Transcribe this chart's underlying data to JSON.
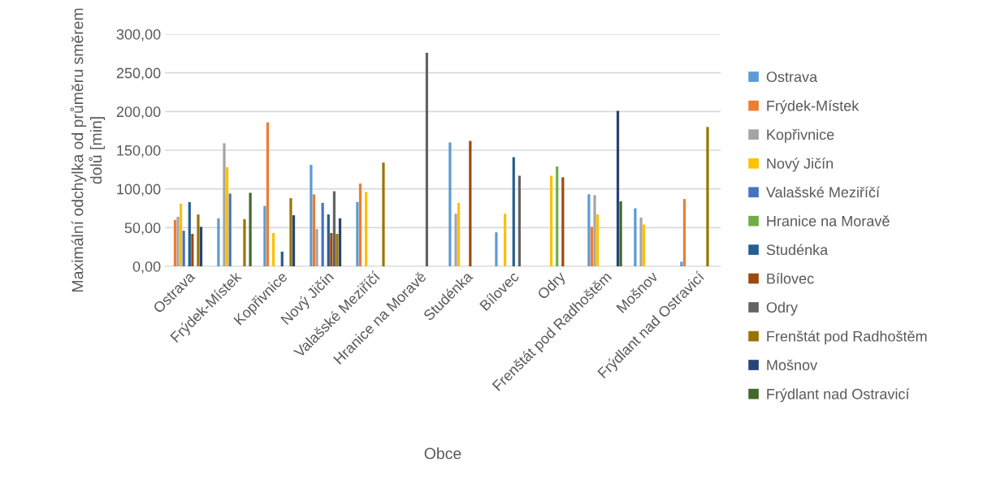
{
  "chart_data": {
    "type": "bar",
    "xlabel": "Obce",
    "ylabel": "Maximální odchylka od průměru směrem\ndolů [min]",
    "categories": [
      "Ostrava",
      "Frýdek-Místek",
      "Kopřivnice",
      "Nový Jičín",
      "Valašské Meziříčí",
      "Hranice na Moravě",
      "Studénka",
      "Bílovec",
      "Odry",
      "Frenštát pod Radhoštěm",
      "Mošnov",
      "Frýdlant nad Ostravicí"
    ],
    "series": [
      {
        "name": "Ostrava",
        "color": "#5b9bd5",
        "values": [
          null,
          62,
          78,
          131,
          83,
          null,
          160,
          44,
          null,
          93,
          75,
          6
        ]
      },
      {
        "name": "Frýdek-Místek",
        "color": "#ed7d31",
        "values": [
          60,
          null,
          186,
          93,
          107,
          null,
          null,
          null,
          null,
          51,
          null,
          87
        ]
      },
      {
        "name": "Kopřivnice",
        "color": "#a5a5a5",
        "values": [
          64,
          159,
          null,
          48,
          null,
          null,
          68,
          null,
          null,
          92,
          63,
          null
        ]
      },
      {
        "name": "Nový Jičín",
        "color": "#ffc000",
        "values": [
          81,
          128,
          43,
          null,
          96,
          null,
          82,
          68,
          117,
          67,
          54,
          null
        ]
      },
      {
        "name": "Valašské Meziříčí",
        "color": "#4472c4",
        "values": [
          46,
          94,
          null,
          82,
          null,
          null,
          null,
          null,
          null,
          null,
          null,
          null
        ]
      },
      {
        "name": "Hranice na Moravě",
        "color": "#70ad47",
        "values": [
          null,
          null,
          null,
          null,
          null,
          null,
          null,
          null,
          129,
          null,
          null,
          null
        ]
      },
      {
        "name": "Studénka",
        "color": "#255e91",
        "values": [
          83,
          null,
          19,
          67,
          null,
          null,
          null,
          141,
          null,
          null,
          null,
          null
        ]
      },
      {
        "name": "Bílovec",
        "color": "#9e480e",
        "values": [
          42,
          null,
          null,
          43,
          null,
          null,
          162,
          null,
          115,
          null,
          null,
          null
        ]
      },
      {
        "name": "Odry",
        "color": "#636363",
        "values": [
          null,
          null,
          null,
          97,
          null,
          276,
          null,
          117,
          null,
          null,
          null,
          null
        ]
      },
      {
        "name": "Frenštát pod Radhoštěm",
        "color": "#997300",
        "values": [
          67,
          61,
          88,
          42,
          134,
          null,
          null,
          null,
          null,
          null,
          null,
          180
        ]
      },
      {
        "name": "Mošnov",
        "color": "#264478",
        "values": [
          51,
          null,
          66,
          62,
          null,
          null,
          null,
          null,
          null,
          201,
          null,
          null
        ]
      },
      {
        "name": "Frýdlant nad Ostravicí",
        "color": "#43682b",
        "values": [
          null,
          95,
          null,
          null,
          null,
          null,
          null,
          null,
          null,
          84,
          null,
          null
        ]
      }
    ],
    "ylim": [
      0,
      300
    ],
    "yticks": [
      {
        "value": 0,
        "label": "0,00"
      },
      {
        "value": 50,
        "label": "50,00"
      },
      {
        "value": 100,
        "label": "100,00"
      },
      {
        "value": 150,
        "label": "150,00"
      },
      {
        "value": 200,
        "label": "200,00"
      },
      {
        "value": 250,
        "label": "250,00"
      },
      {
        "value": 300,
        "label": "300,00"
      }
    ],
    "grid": "y",
    "legend": "right"
  }
}
